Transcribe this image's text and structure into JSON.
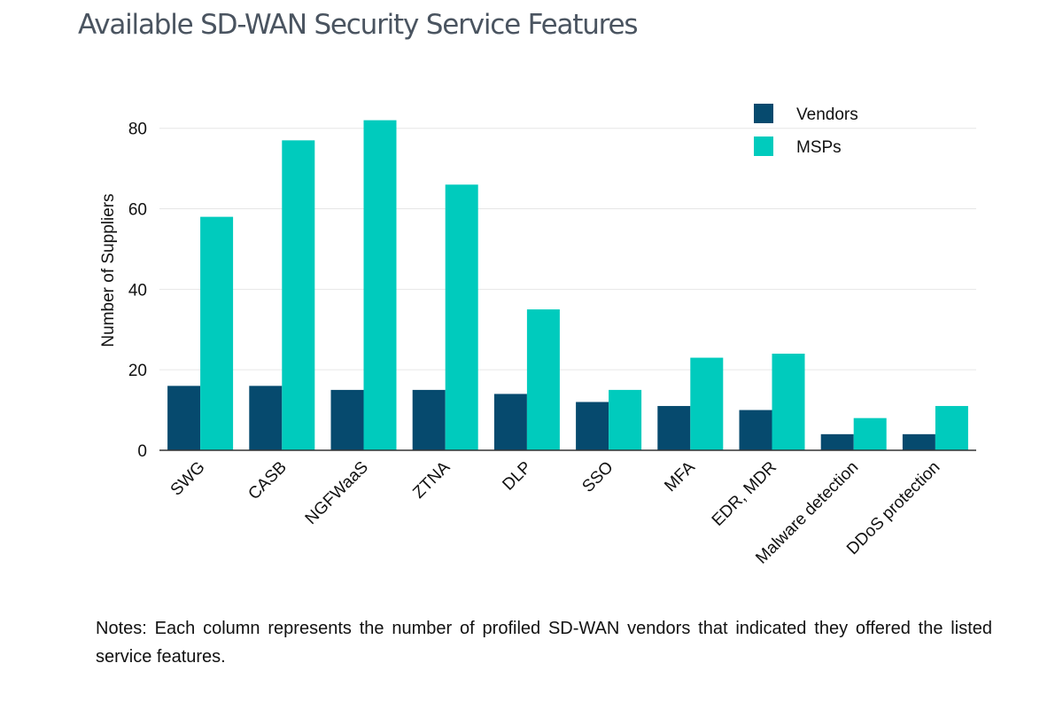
{
  "page": {
    "title": "Available SD-WAN Security Service Features",
    "notes": "Notes: Each column represents the number of profiled SD-WAN vendors that indicated they offered the listed service features."
  },
  "chart_data": {
    "type": "bar",
    "title": "Available SD-WAN Security Service Features",
    "xlabel": "",
    "ylabel": "Number of Suppliers",
    "ylim": [
      0,
      85
    ],
    "yticks": [
      0,
      20,
      40,
      60,
      80
    ],
    "grid": true,
    "legend_position": "top-right",
    "categories": [
      "SWG",
      "CASB",
      "NGFWaaS",
      "ZTNA",
      "DLP",
      "SSO",
      "MFA",
      "EDR, MDR",
      "Malware detection",
      "DDoS protection"
    ],
    "series": [
      {
        "name": "Vendors",
        "color": "#064a6e",
        "values": [
          16,
          16,
          15,
          15,
          14,
          12,
          11,
          10,
          4,
          4
        ]
      },
      {
        "name": "MSPs",
        "color": "#00cbbd",
        "values": [
          58,
          77,
          82,
          66,
          35,
          15,
          23,
          24,
          8,
          11
        ]
      }
    ]
  }
}
